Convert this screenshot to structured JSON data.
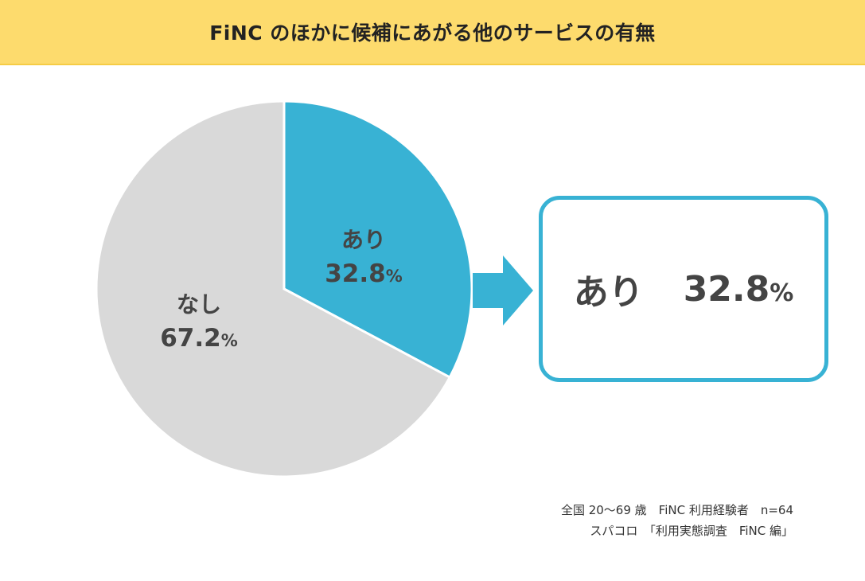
{
  "header": {
    "title": "FiNC のほかに候補にあがる他のサービスの有無"
  },
  "colors": {
    "header_bg": "#fddb6d",
    "ari": "#38b2d4",
    "nashi": "#d9d9d9",
    "text": "#444444"
  },
  "chart_data": {
    "type": "pie",
    "title": "FiNC のほかに候補にあがる他のサービスの有無",
    "slices": [
      {
        "label": "あり",
        "value": 32.8,
        "value_text": "32.8",
        "unit": "%",
        "color": "#38b2d4"
      },
      {
        "label": "なし",
        "value": 67.2,
        "value_text": "67.2",
        "unit": "%",
        "color": "#d9d9d9"
      }
    ],
    "start_angle": "12 o'clock",
    "direction": "clockwise"
  },
  "callout": {
    "label": "あり",
    "value_text": "32.8",
    "unit": "%"
  },
  "notes": {
    "line1": "全国 20～69 歳　FiNC 利用経験者　n=64",
    "line2": "スパコロ　「利用実態調査　FiNC 編」"
  }
}
